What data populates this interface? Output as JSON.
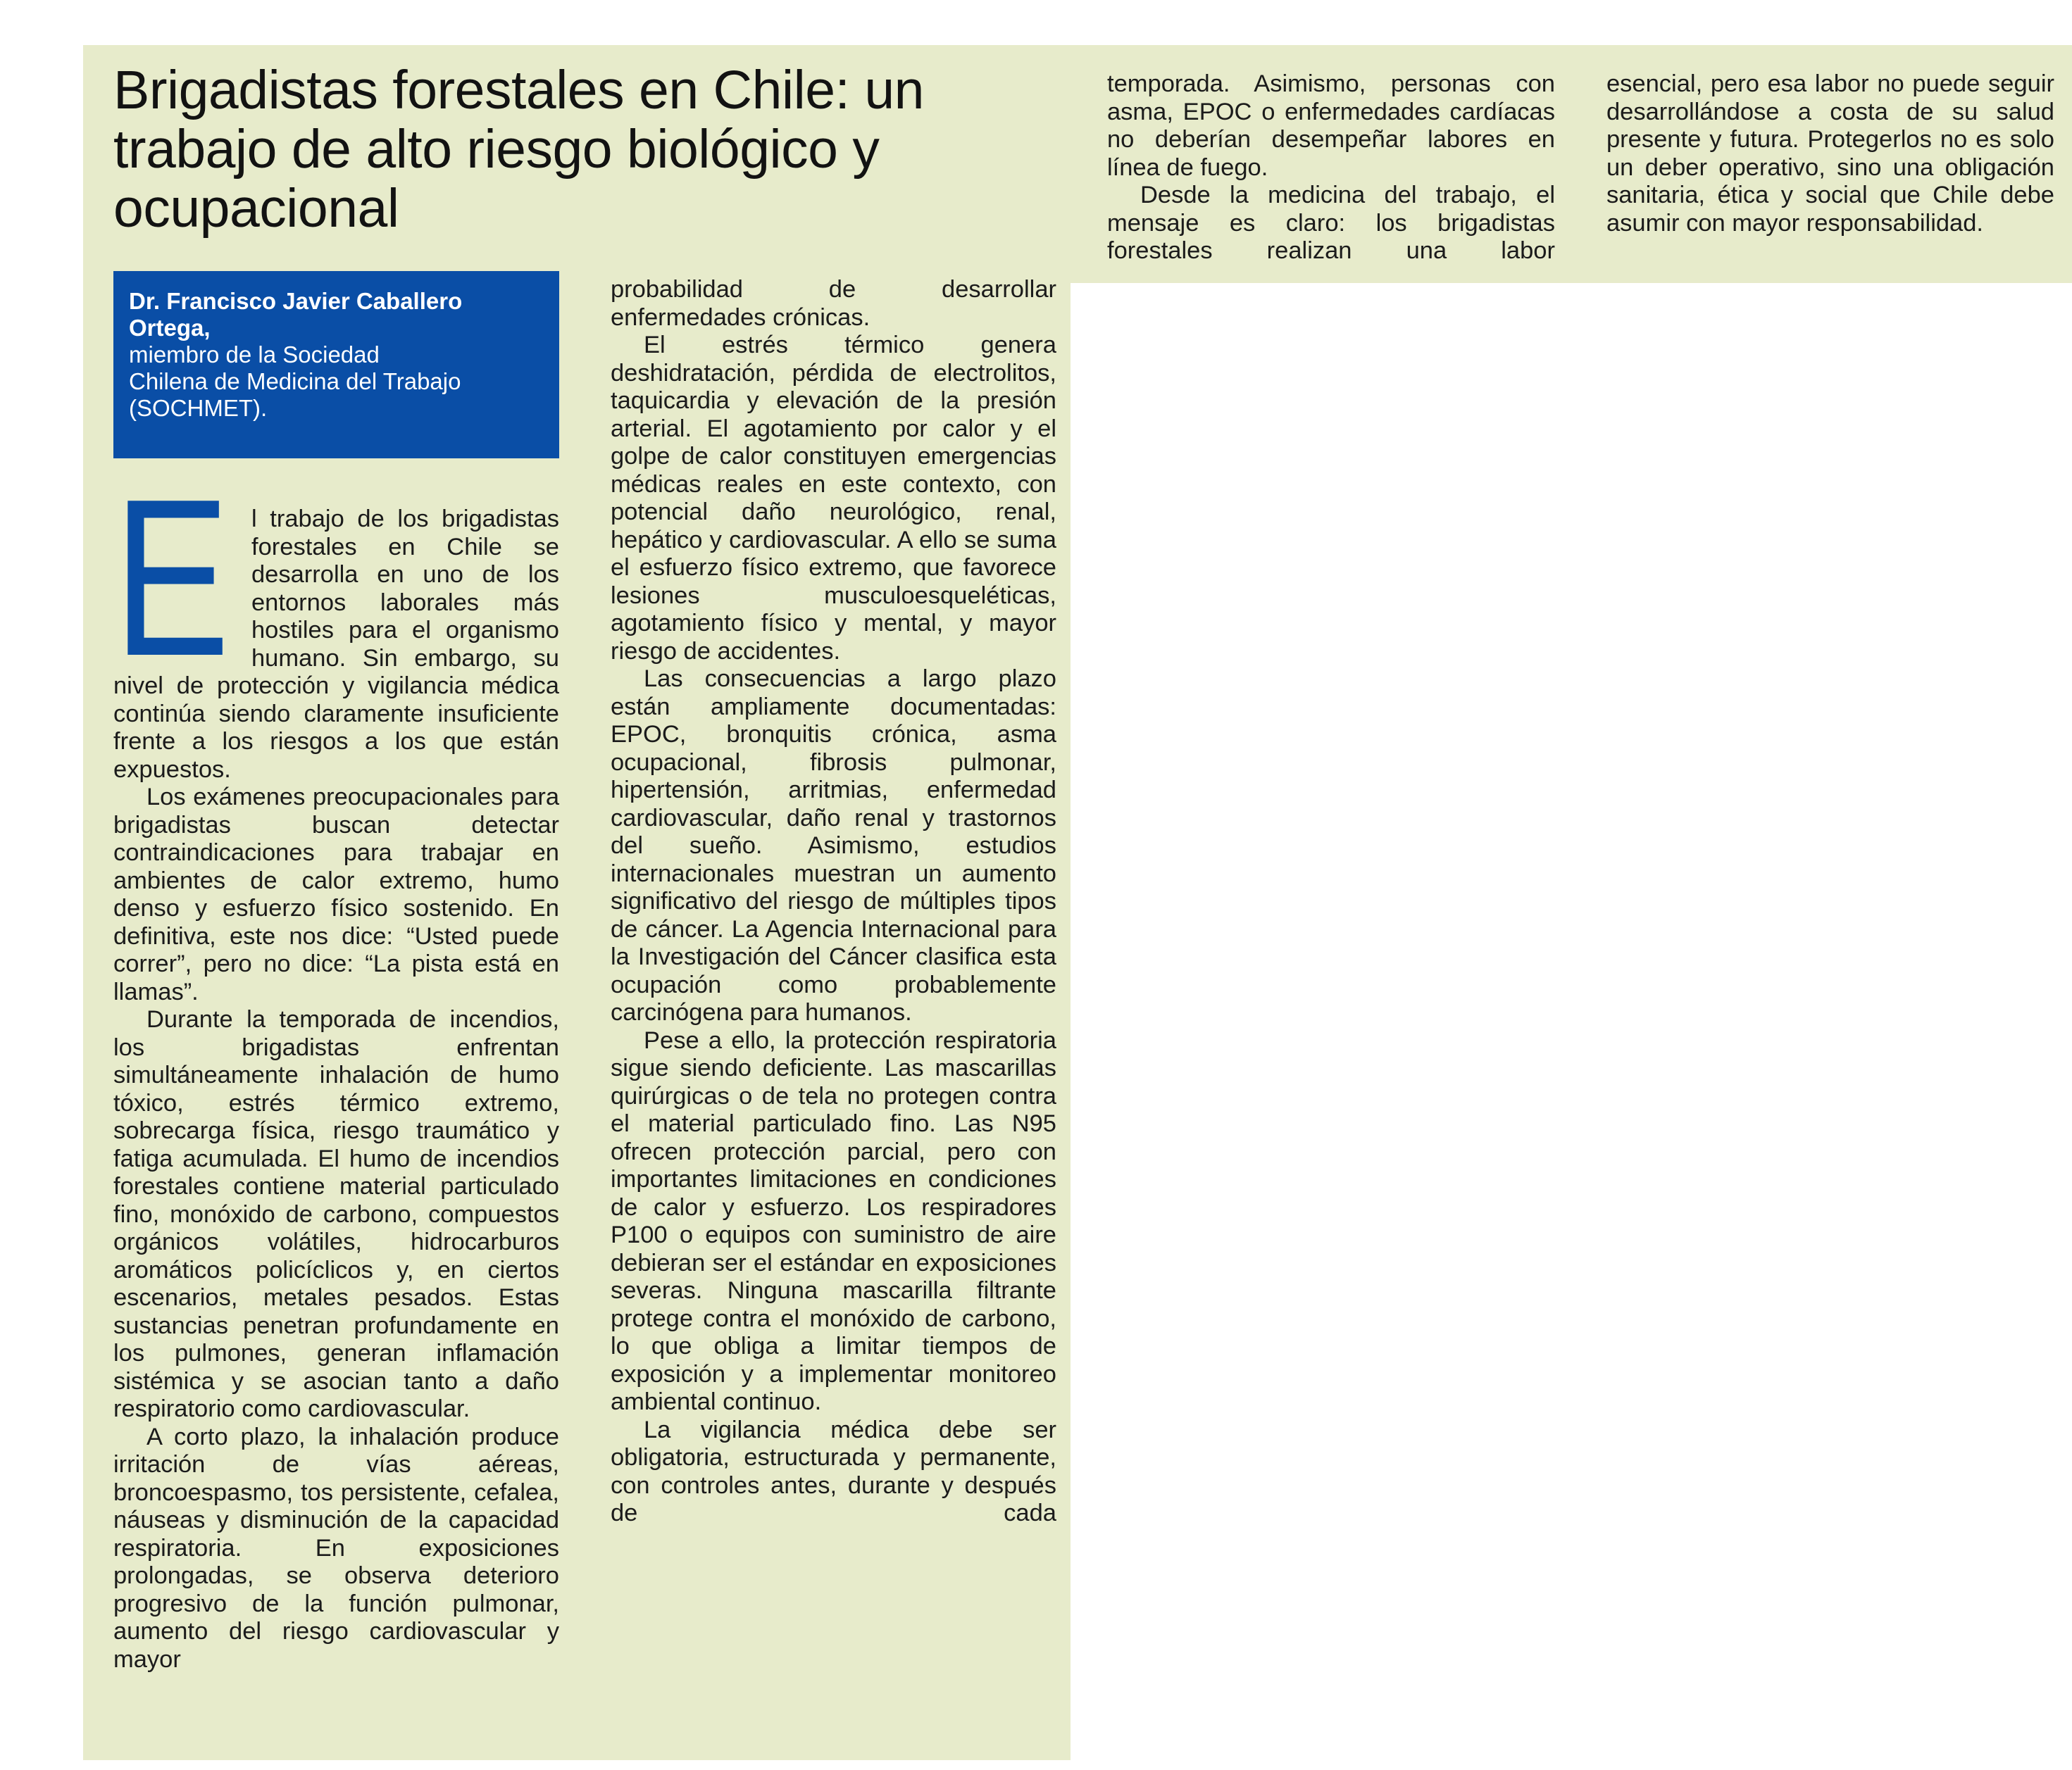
{
  "article": {
    "title": "Brigadistas forestales en Chile: un trabajo de alto riesgo biológico y ocupacional",
    "byline": {
      "name": "Dr. Francisco Javier Caballero Ortega,",
      "affiliation_lines": [
        "miembro de la Sociedad",
        "Chilena de Medicina del Trabajo",
        "(SOCHMET)."
      ]
    },
    "dropcap": "E",
    "columns": [
      [
        "l trabajo de los brigadistas forestales en Chile se desarrolla en uno de los entornos laborales más hostiles para el organismo humano. Sin embargo, su nivel de protección y vigilancia médica continúa siendo claramente insuficiente frente a los riesgos a los que están expuestos.",
        "Los exámenes preocupacionales para brigadistas buscan detectar contraindicaciones para trabajar en ambientes de calor extremo, humo denso y esfuerzo físico sostenido. En definitiva, este nos dice: “Usted puede correr”, pero no dice: “La pista está en llamas”.",
        "Durante la temporada de incendios, los brigadistas enfrentan simultáneamente inhalación de humo tóxico, estrés térmico extremo, sobrecarga física, riesgo traumático y fatiga acumulada. El humo de incendios forestales contiene material particulado fino, monóxido de carbono, compuestos orgánicos volátiles, hidrocarburos aromáticos policíclicos y, en ciertos escenarios, metales pesados. Estas sustancias penetran profundamente en los pulmones, generan inflamación sistémica y se asocian tanto a daño respiratorio como cardiovascular.",
        "A corto plazo, la inhalación produce irritación de vías aéreas, broncoespasmo, tos persistente, cefalea, náuseas y disminución de la capacidad respiratoria. En exposiciones prolongadas, se observa deterioro progresivo de la función pulmonar, aumento del riesgo cardiovascular y mayor"
      ],
      [
        "probabilidad de desarrollar enfermedades crónicas.",
        "El estrés térmico genera deshidratación, pérdida de electrolitos, taquicardia y elevación de la presión arterial. El agotamiento por calor y el golpe de calor constituyen emergencias médicas reales en este contexto, con potencial daño neurológico, renal, hepático y cardiovascular. A ello se suma el esfuerzo físico extremo, que favorece lesiones musculoesqueléticas, agotamiento físico y mental, y mayor riesgo de accidentes.",
        "Las consecuencias a largo plazo están ampliamente documentadas: EPOC, bronquitis crónica, asma ocupacional, fibrosis pulmonar, hipertensión, arritmias, enfermedad cardiovascular, daño renal y trastornos del sueño. Asimismo, estudios internacionales muestran un aumento significativo del riesgo de múltiples tipos de cáncer. La Agencia Internacional para la Investigación del Cáncer clasifica esta ocupación como probablemente carcinógena para humanos.",
        "Pese a ello, la protección respiratoria sigue siendo deficiente. Las mascarillas quirúrgicas o de tela no protegen contra el material particulado fino. Las N95 ofrecen protección parcial, pero con importantes limitaciones en condiciones de calor y esfuerzo. Los respiradores P100 o equipos con suministro de aire debieran ser el estándar en exposiciones severas. Ninguna mascarilla filtrante protege contra el monóxido de carbono, lo que obliga a limitar tiempos de exposición y a implementar monitoreo ambiental continuo.",
        "La vigilancia médica debe ser obligatoria, estructurada y permanente, con controles antes, durante y después de cada"
      ],
      [
        "temporada. Asimismo, personas con asma, EPOC o enfermedades cardíacas no deberían desempeñar labores en línea de fuego.",
        "Desde la medicina del trabajo, el mensaje es claro: los brigadistas forestales realizan una labor"
      ],
      [
        "esencial, pero esa labor no puede seguir desarrollándose a costa de su salud presente y futura. Protegerlos no es solo un deber operativo, sino una obligación sanitaria, ética y social que Chile debe asumir con mayor responsabilidad."
      ]
    ]
  },
  "colors": {
    "background_panel": "#e7ebcb",
    "accent_blue": "#0a4ea6",
    "text": "#1b1b1b"
  }
}
